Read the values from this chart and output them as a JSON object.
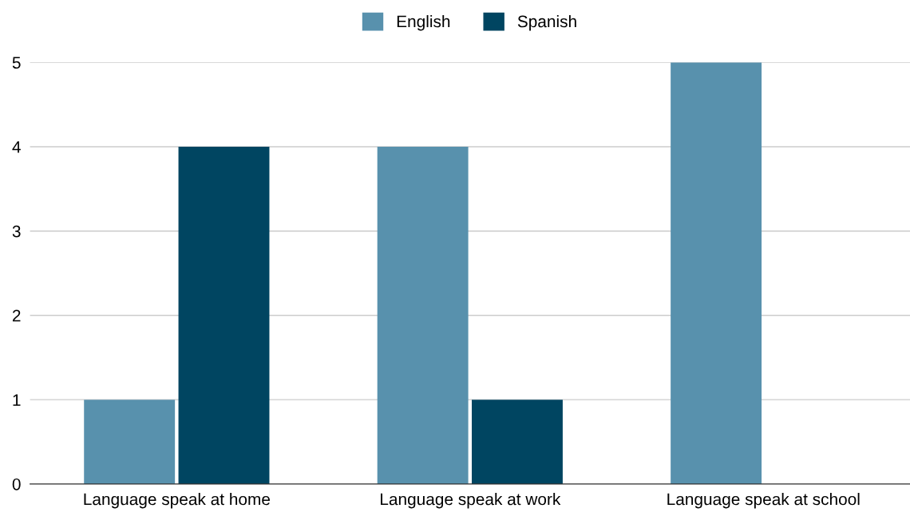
{
  "chart_data": {
    "type": "bar",
    "categories": [
      "Language speak at home",
      "Language speak at work",
      "Language speak at school"
    ],
    "series": [
      {
        "name": "English",
        "color": "#5891ad",
        "values": [
          1,
          4,
          5
        ]
      },
      {
        "name": "Spanish",
        "color": "#004561",
        "values": [
          4,
          1,
          0
        ]
      }
    ],
    "ylim": [
      0,
      5
    ],
    "yticks": [
      0,
      1,
      2,
      3,
      4,
      5
    ],
    "grid": "y",
    "legend": "top"
  }
}
